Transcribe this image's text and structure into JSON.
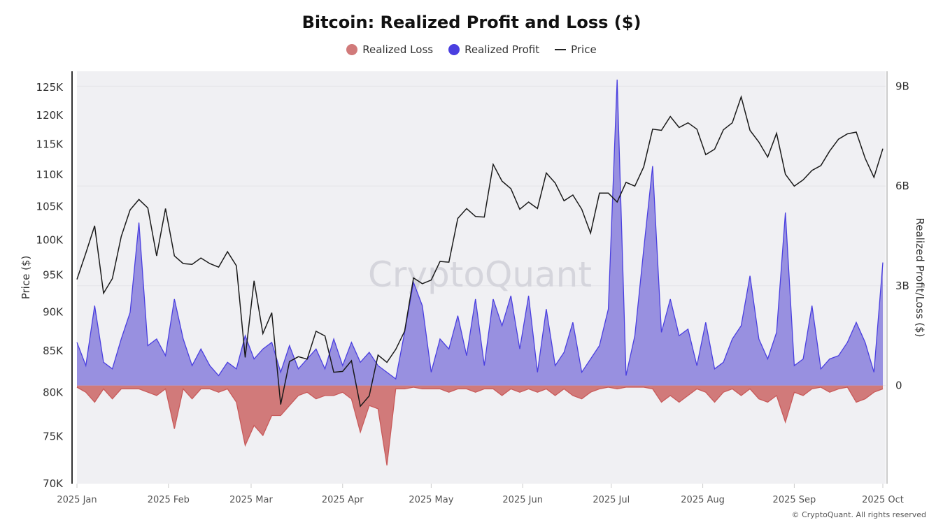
{
  "chart_data": {
    "type": "line+area",
    "title": "Bitcoin: Realized Profit and Loss ($)",
    "legend": {
      "placement": "top",
      "entries": [
        "Realized Loss",
        "Realized Profit",
        "Price"
      ]
    },
    "colors": {
      "loss_fill": "#d17a7a",
      "loss_line": "#c85a5a",
      "profit_fill": "#9890e0",
      "profit_line": "#4a3fe0",
      "price": "#1a1a1a",
      "plot_bg": "#f0f0f3"
    },
    "y_left": {
      "label": "Price ($)",
      "scale": "log",
      "range": [
        70000,
        128000
      ],
      "ticks": [
        70000,
        75000,
        80000,
        85000,
        90000,
        95000,
        100000,
        105000,
        110000,
        115000,
        120000,
        125000
      ],
      "tick_labels": [
        "70K",
        "75K",
        "80K",
        "85K",
        "90K",
        "95K",
        "100K",
        "105K",
        "110K",
        "115K",
        "120K",
        "125K"
      ]
    },
    "y_right": {
      "label": "Realized Profit/Loss ($)",
      "scale": "linear",
      "range": [
        -2.95,
        9.45
      ],
      "unit": "B",
      "ticks": [
        0,
        3,
        6,
        9
      ],
      "tick_labels": [
        "0",
        "3B",
        "6B",
        "9B"
      ]
    },
    "x": {
      "range": [
        "2025-01-01",
        "2025-10-01"
      ],
      "ticks": [
        "2025-01-01",
        "2025-02-01",
        "2025-03-01",
        "2025-04-01",
        "2025-05-01",
        "2025-06-01",
        "2025-07-01",
        "2025-08-01",
        "2025-09-01",
        "2025-10-01"
      ],
      "tick_labels": [
        "2025 Jan",
        "2025 Feb",
        "2025 Mar",
        "2025 Apr",
        "2025 May",
        "2025 Jun",
        "2025 Jul",
        "2025 Aug",
        "2025 Sep",
        "2025 Oct"
      ]
    },
    "grid": true,
    "dates": [
      "2025-01-01",
      "2025-01-04",
      "2025-01-07",
      "2025-01-10",
      "2025-01-13",
      "2025-01-16",
      "2025-01-19",
      "2025-01-22",
      "2025-01-25",
      "2025-01-28",
      "2025-01-31",
      "2025-02-03",
      "2025-02-06",
      "2025-02-09",
      "2025-02-12",
      "2025-02-15",
      "2025-02-18",
      "2025-02-21",
      "2025-02-24",
      "2025-02-27",
      "2025-03-02",
      "2025-03-05",
      "2025-03-08",
      "2025-03-11",
      "2025-03-14",
      "2025-03-17",
      "2025-03-20",
      "2025-03-23",
      "2025-03-26",
      "2025-03-29",
      "2025-04-01",
      "2025-04-04",
      "2025-04-07",
      "2025-04-10",
      "2025-04-13",
      "2025-04-16",
      "2025-04-19",
      "2025-04-22",
      "2025-04-25",
      "2025-04-28",
      "2025-05-01",
      "2025-05-04",
      "2025-05-07",
      "2025-05-10",
      "2025-05-13",
      "2025-05-16",
      "2025-05-19",
      "2025-05-22",
      "2025-05-25",
      "2025-05-28",
      "2025-05-31",
      "2025-06-03",
      "2025-06-06",
      "2025-06-09",
      "2025-06-12",
      "2025-06-15",
      "2025-06-18",
      "2025-06-21",
      "2025-06-24",
      "2025-06-27",
      "2025-06-30",
      "2025-07-03",
      "2025-07-06",
      "2025-07-09",
      "2025-07-12",
      "2025-07-15",
      "2025-07-18",
      "2025-07-21",
      "2025-07-24",
      "2025-07-27",
      "2025-07-30",
      "2025-08-02",
      "2025-08-05",
      "2025-08-08",
      "2025-08-11",
      "2025-08-14",
      "2025-08-17",
      "2025-08-20",
      "2025-08-23",
      "2025-08-26",
      "2025-08-29",
      "2025-09-01",
      "2025-09-04",
      "2025-09-07",
      "2025-09-10",
      "2025-09-13",
      "2025-09-16",
      "2025-09-19",
      "2025-09-22",
      "2025-09-25",
      "2025-09-28",
      "2025-10-01"
    ],
    "series": [
      {
        "name": "Price",
        "axis": "left",
        "values": [
          94400,
          98100,
          102100,
          92500,
          94500,
          100500,
          104500,
          106100,
          104800,
          97700,
          104700,
          97700,
          96600,
          96500,
          97400,
          96600,
          96100,
          98300,
          96300,
          84200,
          94200,
          87200,
          89900,
          78600,
          83700,
          84300,
          84000,
          87500,
          86900,
          82400,
          82500,
          83800,
          78400,
          79600,
          84500,
          83600,
          85200,
          87500,
          94600,
          93800,
          94300,
          96900,
          96800,
          103200,
          104700,
          103500,
          103400,
          111700,
          109000,
          107800,
          104600,
          105700,
          104700,
          110300,
          108700,
          105900,
          106800,
          104600,
          101000,
          107100,
          107100,
          105700,
          108800,
          108200,
          111300,
          117600,
          117400,
          119800,
          117900,
          118700,
          117600,
          113300,
          114200,
          117500,
          118700,
          123300,
          117400,
          115400,
          112900,
          116900,
          110100,
          108200,
          109200,
          110700,
          111500,
          113900,
          115900,
          116800,
          117100,
          112700,
          109600,
          114300
        ]
      },
      {
        "name": "Realized Profit",
        "axis": "right",
        "unit": "B",
        "values": [
          1.3,
          0.6,
          2.4,
          0.7,
          0.5,
          1.4,
          2.2,
          4.9,
          1.2,
          1.4,
          0.9,
          2.6,
          1.4,
          0.6,
          1.1,
          0.6,
          0.3,
          0.7,
          0.5,
          1.5,
          0.8,
          1.1,
          1.3,
          0.4,
          1.2,
          0.5,
          0.8,
          1.1,
          0.5,
          1.4,
          0.6,
          1.3,
          0.7,
          1.0,
          0.6,
          0.4,
          0.2,
          1.6,
          3.1,
          2.4,
          0.4,
          1.4,
          1.1,
          2.1,
          0.9,
          2.6,
          0.6,
          2.6,
          1.8,
          2.7,
          1.1,
          2.7,
          0.4,
          2.3,
          0.6,
          1.0,
          1.9,
          0.4,
          0.8,
          1.2,
          2.3,
          9.2,
          0.3,
          1.5,
          4.1,
          6.6,
          1.6,
          2.6,
          1.5,
          1.7,
          0.6,
          1.9,
          0.5,
          0.7,
          1.4,
          1.8,
          3.3,
          1.4,
          0.8,
          1.6,
          5.2,
          0.6,
          0.8,
          2.4,
          0.5,
          0.8,
          0.9,
          1.3,
          1.9,
          1.3,
          0.4,
          3.7
        ]
      },
      {
        "name": "Realized Loss",
        "axis": "right",
        "unit": "B",
        "values": [
          -0.05,
          -0.2,
          -0.5,
          -0.1,
          -0.4,
          -0.1,
          -0.1,
          -0.1,
          -0.2,
          -0.3,
          -0.1,
          -1.3,
          -0.1,
          -0.4,
          -0.1,
          -0.1,
          -0.2,
          -0.1,
          -0.5,
          -1.8,
          -1.2,
          -1.5,
          -0.9,
          -0.9,
          -0.6,
          -0.3,
          -0.2,
          -0.4,
          -0.3,
          -0.3,
          -0.2,
          -0.4,
          -1.4,
          -0.6,
          -0.7,
          -2.4,
          -0.1,
          -0.1,
          -0.05,
          -0.1,
          -0.1,
          -0.1,
          -0.2,
          -0.1,
          -0.1,
          -0.2,
          -0.1,
          -0.1,
          -0.3,
          -0.1,
          -0.2,
          -0.1,
          -0.2,
          -0.1,
          -0.3,
          -0.1,
          -0.3,
          -0.4,
          -0.2,
          -0.1,
          -0.05,
          -0.1,
          -0.05,
          -0.05,
          -0.05,
          -0.1,
          -0.5,
          -0.3,
          -0.5,
          -0.3,
          -0.1,
          -0.2,
          -0.5,
          -0.2,
          -0.1,
          -0.3,
          -0.1,
          -0.4,
          -0.5,
          -0.3,
          -1.1,
          -0.2,
          -0.3,
          -0.1,
          -0.05,
          -0.2,
          -0.1,
          -0.05,
          -0.5,
          -0.4,
          -0.2,
          -0.1
        ]
      }
    ],
    "watermark": "CryptoQuant"
  },
  "footer": "© CryptoQuant. All rights reserved"
}
